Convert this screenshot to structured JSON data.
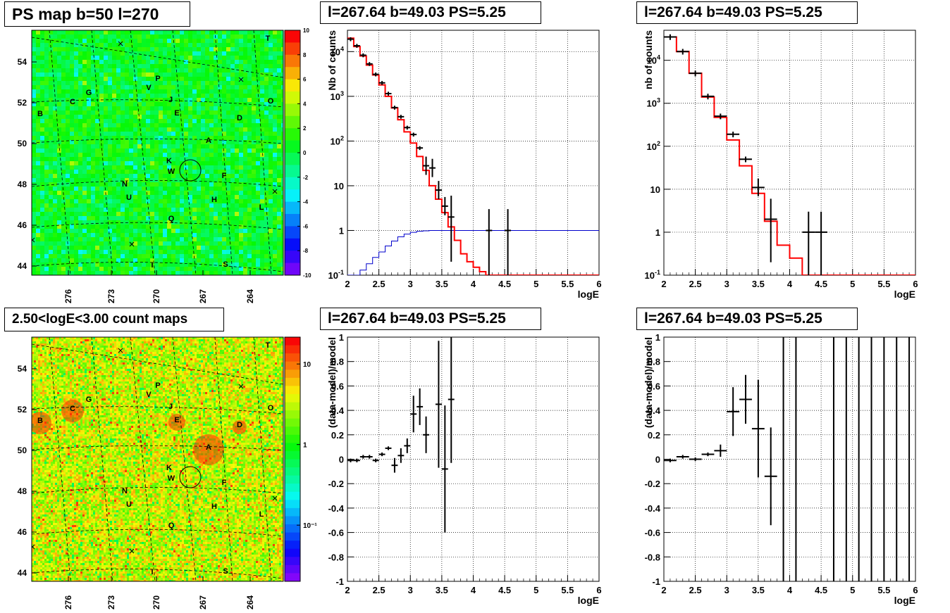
{
  "titles": {
    "map_top": "PS map b=50 l=270",
    "map_bottom": "2.50<logE<3.00 count maps",
    "spec_a": "l=267.64 b=49.03 PS=5.25",
    "spec_b": "l=267.64 b=49.03 PS=5.25",
    "res_a": "l=267.64 b=49.03 PS=5.25",
    "res_b": "l=267.64 b=49.03 PS=5.25"
  },
  "axis_labels": {
    "spec_a_y": "Nb of counts",
    "spec_b_y": "nb of counts",
    "res_y": "(data-model)/model",
    "x": "logE"
  },
  "colors": {
    "model_line": "#ff0000",
    "exposure_line": "#0000cc",
    "data_points": "#000000"
  },
  "map_axes": {
    "b_ticks": [
      "54",
      "52",
      "50",
      "48",
      "46",
      "44"
    ],
    "l_ticks": [
      "276",
      "273",
      "270",
      "267",
      "264"
    ]
  },
  "map_sources": [
    "T",
    "G",
    "C",
    "B",
    "P",
    "V",
    "J",
    "E",
    "O",
    "D",
    "A",
    "K",
    "W",
    "F",
    "N",
    "U",
    "H",
    "L",
    "Q",
    "I",
    "S"
  ],
  "colorbar_top": {
    "scale": "linear",
    "ticks": [
      "10",
      "8",
      "6",
      "4",
      "2",
      "0",
      "-2",
      "-4",
      "-6",
      "-8",
      "-10"
    ]
  },
  "colorbar_bottom": {
    "scale": "log",
    "ticks": [
      "10",
      "1",
      "10^-1"
    ]
  },
  "chart_data": [
    {
      "type": "heatmap",
      "title": "PS map b=50 l=270",
      "xlabel": "",
      "ylabel": "",
      "x_ticks": [
        "276",
        "273",
        "270",
        "267",
        "264"
      ],
      "y_ticks": [
        "54",
        "52",
        "50",
        "48",
        "46",
        "44"
      ],
      "z_range": [
        -10,
        10
      ],
      "dominant_value_range": [
        -1,
        3
      ],
      "circle_center": [
        267.64,
        49.03
      ]
    },
    {
      "type": "line",
      "title": "l=267.64 b=49.03 PS=5.25",
      "xlabel": "logE",
      "ylabel": "Nb of counts",
      "xlim": [
        2,
        6
      ],
      "ylim": [
        0.1,
        30000
      ],
      "yscale": "log",
      "grid": true,
      "series": [
        {
          "name": "model",
          "x": [
            2.0,
            2.1,
            2.2,
            2.3,
            2.4,
            2.5,
            2.6,
            2.7,
            2.8,
            2.9,
            3.0,
            3.1,
            3.2,
            3.3,
            3.4,
            3.5,
            3.6,
            3.7,
            3.8,
            3.9,
            4.0,
            4.1,
            4.2,
            4.3
          ],
          "values": [
            20000,
            13000,
            8000,
            5000,
            3000,
            1800,
            1000,
            550,
            300,
            160,
            90,
            45,
            22,
            10,
            5,
            2.5,
            1.2,
            0.6,
            0.3,
            0.2,
            0.15,
            0.12,
            0.1,
            0.1
          ]
        },
        {
          "name": "exposure",
          "x": [
            2.0,
            2.1,
            2.2,
            2.3,
            2.4,
            2.5,
            2.6,
            2.7,
            2.8,
            2.9,
            3.0,
            3.1,
            3.2,
            3.3,
            3.4,
            3.5
          ],
          "values": [
            0.1,
            0.1,
            0.13,
            0.18,
            0.25,
            0.33,
            0.45,
            0.58,
            0.72,
            0.83,
            0.91,
            0.96,
            0.98,
            1,
            1,
            1
          ]
        },
        {
          "name": "data",
          "x": [
            2.05,
            2.15,
            2.25,
            2.35,
            2.45,
            2.55,
            2.65,
            2.75,
            2.85,
            2.95,
            3.05,
            3.15,
            3.25,
            3.35,
            3.45,
            3.55,
            3.65,
            4.25,
            4.55
          ],
          "values": [
            19000,
            13500,
            8300,
            5300,
            3100,
            2000,
            1150,
            560,
            350,
            200,
            140,
            70,
            28,
            25,
            8,
            3.5,
            2,
            1,
            1
          ]
        }
      ]
    },
    {
      "type": "line",
      "title": "l=267.64 b=49.03 PS=5.25",
      "xlabel": "logE",
      "ylabel": "nb of counts",
      "xlim": [
        2,
        6
      ],
      "ylim": [
        0.1,
        50000
      ],
      "yscale": "log",
      "grid": true,
      "series": [
        {
          "name": "model",
          "x": [
            2.0,
            2.2,
            2.4,
            2.6,
            2.8,
            3.0,
            3.2,
            3.4,
            3.6,
            3.8,
            4.0,
            4.2
          ],
          "values": [
            35000,
            16000,
            5000,
            1400,
            470,
            140,
            35,
            8,
            1.8,
            0.5,
            0.25,
            0.1
          ]
        },
        {
          "name": "data",
          "x": [
            2.1,
            2.3,
            2.5,
            2.7,
            2.9,
            3.1,
            3.3,
            3.5,
            3.7,
            4.3,
            4.5
          ],
          "values": [
            35000,
            16000,
            5000,
            1450,
            500,
            190,
            50,
            11,
            2,
            1,
            1
          ]
        }
      ]
    },
    {
      "type": "scatter",
      "title": "l=267.64 b=49.03 PS=5.25",
      "xlabel": "logE",
      "ylabel": "(data-model)/model",
      "xlim": [
        2,
        6
      ],
      "ylim": [
        -1,
        1
      ],
      "grid": true,
      "x": [
        2.05,
        2.15,
        2.25,
        2.35,
        2.45,
        2.55,
        2.65,
        2.75,
        2.85,
        2.95,
        3.05,
        3.15,
        3.25,
        3.45,
        3.55,
        3.65
      ],
      "values": [
        -0.01,
        -0.01,
        0.02,
        0.02,
        -0.01,
        0.04,
        0.09,
        -0.05,
        0.03,
        0.11,
        0.37,
        0.43,
        0.2,
        0.45,
        -0.08,
        0.49
      ]
    },
    {
      "type": "scatter",
      "title": "l=267.64 b=49.03 PS=5.25",
      "xlabel": "logE",
      "ylabel": "(data-model)/model",
      "xlim": [
        2,
        6
      ],
      "ylim": [
        -1,
        1
      ],
      "grid": true,
      "x": [
        2.1,
        2.3,
        2.5,
        2.7,
        2.9,
        3.1,
        3.3,
        3.5,
        3.7
      ],
      "values": [
        -0.01,
        0.02,
        0.0,
        0.04,
        0.07,
        0.39,
        0.49,
        0.25,
        -0.14
      ]
    }
  ]
}
